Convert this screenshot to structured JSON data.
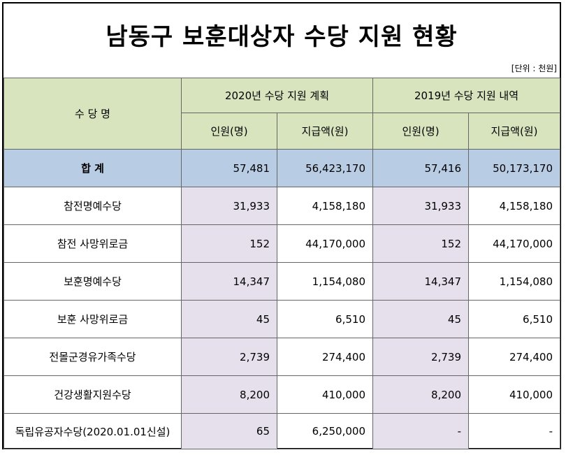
{
  "title": "남동구 보훈대상자 수당 지원 현황",
  "unit": "[단위 : 천원]",
  "headers": {
    "name": "수 당 명",
    "plan2020": "2020년 수당 지원 계획",
    "actual2019": "2019년 수당 지원 내역",
    "people": "인원(명)",
    "amount": "지급액(원)"
  },
  "total": {
    "name": "합 계",
    "p2020": "57,481",
    "a2020": "56,423,170",
    "p2019": "57,416",
    "a2019": "50,173,170"
  },
  "rows": [
    {
      "name": "참전명예수당",
      "p2020": "31,933",
      "a2020": "4,158,180",
      "p2019": "31,933",
      "a2019": "4,158,180"
    },
    {
      "name": "참전 사망위로금",
      "p2020": "152",
      "a2020": "44,170,000",
      "p2019": "152",
      "a2019": "44,170,000"
    },
    {
      "name": "보훈명예수당",
      "p2020": "14,347",
      "a2020": "1,154,080",
      "p2019": "14,347",
      "a2019": "1,154,080"
    },
    {
      "name": "보훈 사망위로금",
      "p2020": "45",
      "a2020": "6,510",
      "p2019": "45",
      "a2019": "6,510"
    },
    {
      "name": "전몰군경유가족수당",
      "p2020": "2,739",
      "a2020": "274,400",
      "p2019": "2,739",
      "a2019": "274,400"
    },
    {
      "name": "건강생활지원수당",
      "p2020": "8,200",
      "a2020": "410,000",
      "p2019": "8,200",
      "a2019": "410,000"
    },
    {
      "name": "독립유공자수당(2020.01.01신설)",
      "p2020": "65",
      "a2020": "6,250,000",
      "p2019": "-",
      "a2019": "-"
    }
  ],
  "colors": {
    "header_bg": "#d7e4bd",
    "total_bg": "#b8cce4",
    "people_col_bg": "#e5e0ec"
  }
}
